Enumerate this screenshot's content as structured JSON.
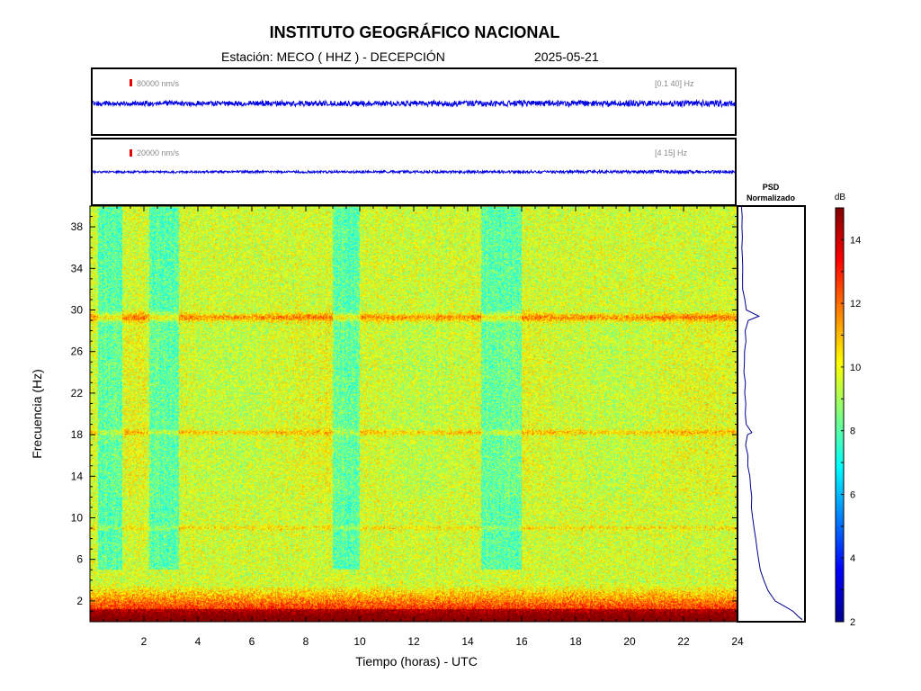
{
  "title": "INSTITUTO GEOGRÁFICO NACIONAL",
  "station": "Estación:  MECO ( HHZ ) - DECEPCIÓN",
  "date": "2025-05-21",
  "chart_data": [
    {
      "type": "line",
      "panel": "seismogram-broadband",
      "scale_label": "80000 nm/s",
      "filter_label": "[0.1 40]  Hz",
      "x_range": [
        0,
        24
      ],
      "trace_level": "constant low-amplitude noise"
    },
    {
      "type": "line",
      "panel": "seismogram-filtered",
      "scale_label": "20000 nm/s",
      "filter_label": "[4 15]  Hz",
      "x_range": [
        0,
        24
      ],
      "trace_level": "constant low-amplitude noise"
    },
    {
      "type": "heatmap",
      "panel": "spectrogram",
      "xlabel": "Tiempo (horas) - UTC",
      "ylabel": "Frecuencia  (Hz)",
      "xlim": [
        0,
        24
      ],
      "ylim": [
        0,
        40
      ],
      "xticks": [
        2,
        4,
        6,
        8,
        10,
        12,
        14,
        16,
        18,
        20,
        22,
        24
      ],
      "yticks": [
        2,
        6,
        10,
        14,
        18,
        22,
        26,
        30,
        34,
        38
      ],
      "colorbar": {
        "label": "dB",
        "range": [
          2,
          15
        ],
        "ticks": [
          2,
          4,
          6,
          8,
          10,
          12,
          14
        ]
      },
      "features": {
        "strong_band_hz": [
          0,
          2.5
        ],
        "horizontal_bands_hz": [
          29.3,
          18.2,
          9
        ],
        "quiet_periods_hours": [
          [
            0.3,
            1.2
          ],
          [
            2.2,
            3.3
          ],
          [
            9.0,
            10.0
          ],
          [
            14.5,
            16.0
          ]
        ]
      }
    },
    {
      "type": "line",
      "panel": "psd",
      "title_line1": "PSD",
      "title_line2": "Normalizado",
      "frequency_hz": [
        0.2,
        0.5,
        1,
        1.5,
        2,
        3,
        4,
        5,
        6,
        7,
        8,
        9,
        10,
        11,
        12,
        13,
        14,
        15,
        16,
        17,
        18,
        18.2,
        19,
        20,
        21,
        22,
        23,
        24,
        25,
        26,
        27,
        28,
        29,
        29.4,
        30,
        31,
        32,
        33,
        34,
        35,
        36,
        37,
        38,
        39,
        40
      ],
      "value_normalized": [
        1.0,
        0.93,
        0.85,
        0.72,
        0.57,
        0.45,
        0.38,
        0.33,
        0.3,
        0.28,
        0.26,
        0.24,
        0.22,
        0.2,
        0.19,
        0.17,
        0.16,
        0.14,
        0.13,
        0.11,
        0.13,
        0.19,
        0.12,
        0.09,
        0.1,
        0.08,
        0.09,
        0.08,
        0.09,
        0.09,
        0.1,
        0.09,
        0.14,
        0.31,
        0.12,
        0.08,
        0.06,
        0.05,
        0.05,
        0.04,
        0.05,
        0.04,
        0.04,
        0.05,
        0.04
      ]
    }
  ]
}
